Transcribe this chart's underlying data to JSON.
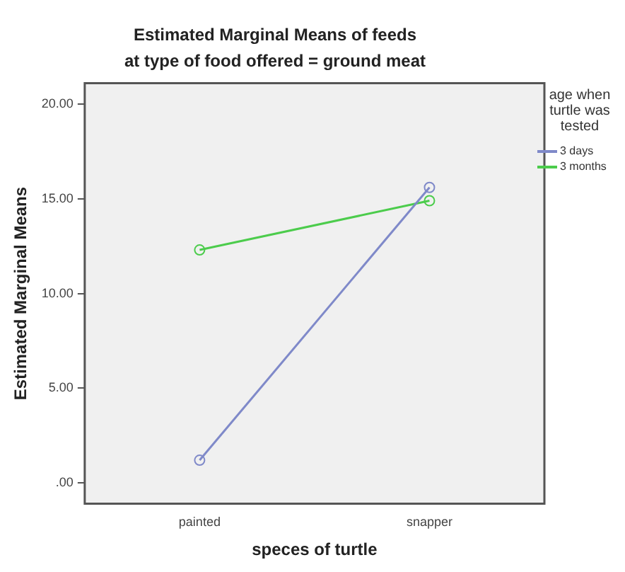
{
  "chart_data": {
    "type": "line",
    "title": "Estimated Marginal Means of feeds",
    "subtitle": "at type of food offered = ground meat",
    "xlabel": "speces of turtle",
    "ylabel": "Estimated Marginal Means",
    "legend_title": "age when turtle was tested",
    "categories": [
      "painted",
      "snapper"
    ],
    "series": [
      {
        "name": "3 days",
        "color": "#7f89c9",
        "values": [
          1.2,
          15.6
        ]
      },
      {
        "name": "3 months",
        "color": "#4ccc4c",
        "values": [
          12.3,
          14.9
        ]
      }
    ],
    "ylim": [
      -1.1,
      21.1
    ],
    "yticks": [
      {
        "value": 0,
        "label": ".00"
      },
      {
        "value": 5,
        "label": "5.00"
      },
      {
        "value": 10,
        "label": "10.00"
      },
      {
        "value": 15,
        "label": "15.00"
      },
      {
        "value": 20,
        "label": "20.00"
      }
    ],
    "grid": false,
    "legend": "right",
    "marker": "circle",
    "line_style": "solid"
  }
}
